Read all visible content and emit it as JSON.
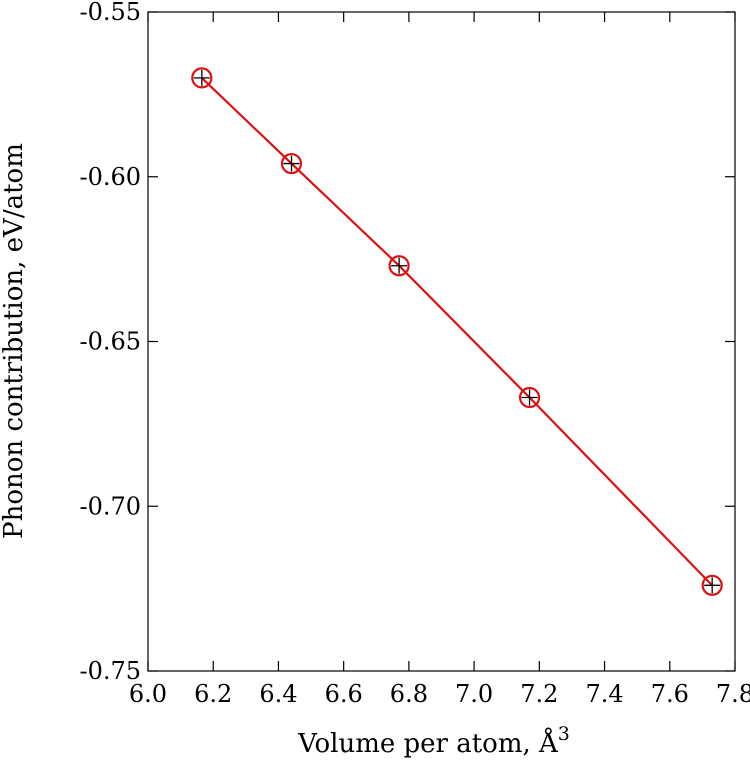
{
  "chart_data": {
    "type": "line",
    "xlabel": "Volume per atom, Å",
    "xlabel_superscript": "3",
    "ylabel": "Phonon contribution, eV/atom",
    "xlim": [
      6.0,
      7.8
    ],
    "ylim": [
      -0.75,
      -0.55
    ],
    "x_ticks": [
      "6.0",
      "6.2",
      "6.4",
      "6.6",
      "6.8",
      "7.0",
      "7.2",
      "7.4",
      "7.6",
      "7.8"
    ],
    "y_ticks": [
      "-0.55",
      "-0.60",
      "-0.65",
      "-0.70",
      "-0.75"
    ],
    "grid": false,
    "series": [
      {
        "marker": "circle-plus",
        "color": "#dd1111",
        "x": [
          6.165,
          6.44,
          6.77,
          7.17,
          7.73
        ],
        "y": [
          -0.57,
          -0.596,
          -0.627,
          -0.667,
          -0.724
        ]
      }
    ]
  }
}
